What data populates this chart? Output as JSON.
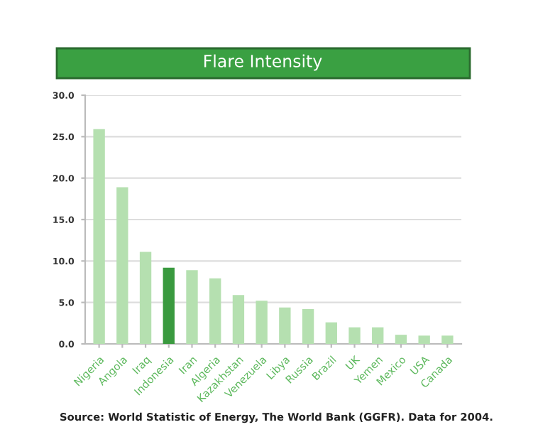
{
  "chart_data": {
    "type": "bar",
    "title": "Flare Intensity",
    "categories": [
      "Nigeria",
      "Angola",
      "Iraq",
      "Indonesia",
      "Iran",
      "Algeria",
      "Kazakhstan",
      "Venezuela",
      "Libya",
      "Russia",
      "Brazil",
      "UK",
      "Yemen",
      "Mexico",
      "USA",
      "Canada"
    ],
    "values": [
      25.9,
      18.9,
      11.1,
      9.2,
      8.9,
      7.9,
      5.9,
      5.2,
      4.4,
      4.2,
      2.6,
      2.0,
      2.0,
      1.1,
      1.0,
      1.0
    ],
    "colors": [
      "#b5e0b0",
      "#b5e0b0",
      "#b5e0b0",
      "#3a9a3f",
      "#b5e0b0",
      "#b5e0b0",
      "#b5e0b0",
      "#b5e0b0",
      "#b5e0b0",
      "#b5e0b0",
      "#b5e0b0",
      "#b5e0b0",
      "#b5e0b0",
      "#b5e0b0",
      "#b5e0b0",
      "#b5e0b0"
    ],
    "ylim": [
      0,
      30
    ],
    "yticks": [
      {
        "value": 0,
        "label": "0.0"
      },
      {
        "value": 5,
        "label": "5.0"
      },
      {
        "value": 10,
        "label": "10.0"
      },
      {
        "value": 15,
        "label": "15.0"
      },
      {
        "value": 20,
        "label": "20.0"
      },
      {
        "value": 25,
        "label": "25.0"
      },
      {
        "value": 30,
        "label": "30.0"
      }
    ],
    "grid": "y",
    "annotations": [
      "Source: World Statistic of Energy, The World Bank (GGFR). Data for 2004."
    ]
  }
}
